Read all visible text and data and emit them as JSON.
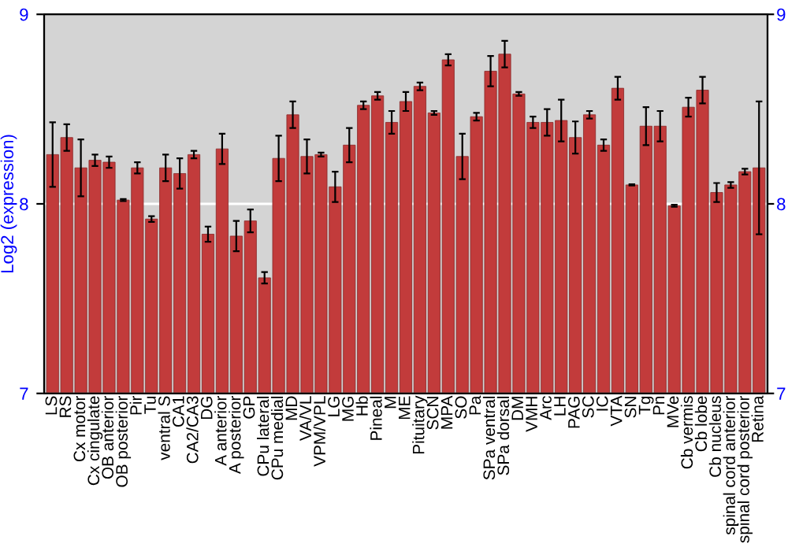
{
  "chart_data": {
    "type": "bar",
    "ylabel": "Log2 (expression)",
    "categories": [
      "LS",
      "RS",
      "Cx motor",
      "Cx cingulate",
      "OB anterior",
      "OB posterior",
      "Pir",
      "Tu",
      "ventral S",
      "CA1",
      "CA2/CA3",
      "DG",
      "A anterior",
      "A posterior",
      "GP",
      "CPu lateral",
      "CPu medial",
      "MD",
      "VA/VL",
      "VPM/VPL",
      "LG",
      "MG",
      "Hb",
      "Pineal",
      "M",
      "ME",
      "Pituitary",
      "SCN",
      "MPA",
      "SO",
      "Pa",
      "SPa ventral",
      "SPa dorsal",
      "DM",
      "VMH",
      "Arc",
      "LH",
      "PAG",
      "SC",
      "IC",
      "VTA",
      "SN",
      "Tg",
      "Pn",
      "MVe",
      "Cb vermis",
      "Cb lobe",
      "Cb nucleus",
      "spinal cord anterior",
      "spinal cord posterior",
      "Retina"
    ],
    "series": [
      {
        "color": "#c23b3b",
        "values": [
          8.26,
          8.35,
          8.19,
          8.23,
          8.22,
          8.02,
          8.19,
          7.92,
          8.19,
          8.16,
          8.26,
          7.84,
          8.29,
          7.83,
          7.91,
          7.61,
          8.24,
          8.47,
          8.25,
          8.26,
          8.09,
          8.31,
          8.52,
          8.57,
          8.43,
          8.54,
          8.62,
          8.48,
          8.76,
          8.25,
          8.46,
          8.7,
          8.79,
          8.58,
          8.43,
          8.43,
          8.44,
          8.35,
          8.47,
          8.31,
          8.61,
          8.1,
          8.41,
          8.41,
          7.99,
          8.51,
          8.6,
          8.06,
          8.1,
          8.17,
          8.19
        ],
        "errors": [
          0.17,
          0.07,
          0.15,
          0.03,
          0.03,
          0.005,
          0.03,
          0.015,
          0.07,
          0.08,
          0.02,
          0.04,
          0.08,
          0.08,
          0.06,
          0.03,
          0.12,
          0.07,
          0.09,
          0.01,
          0.08,
          0.09,
          0.02,
          0.02,
          0.06,
          0.05,
          0.02,
          0.01,
          0.03,
          0.12,
          0.02,
          0.08,
          0.07,
          0.01,
          0.03,
          0.07,
          0.11,
          0.085,
          0.02,
          0.03,
          0.06,
          0.003,
          0.1,
          0.08,
          0.005,
          0.05,
          0.07,
          0.05,
          0.015,
          0.015,
          0.35
        ]
      }
    ],
    "ylim": [
      7,
      9
    ],
    "yticks": [
      7,
      8,
      9
    ],
    "y2lim": [
      7,
      9
    ],
    "y2ticks": [
      7,
      8,
      9
    ],
    "ref_lines": [
      {
        "axis": "y",
        "value": 8,
        "color": "#ffffff"
      }
    ]
  }
}
